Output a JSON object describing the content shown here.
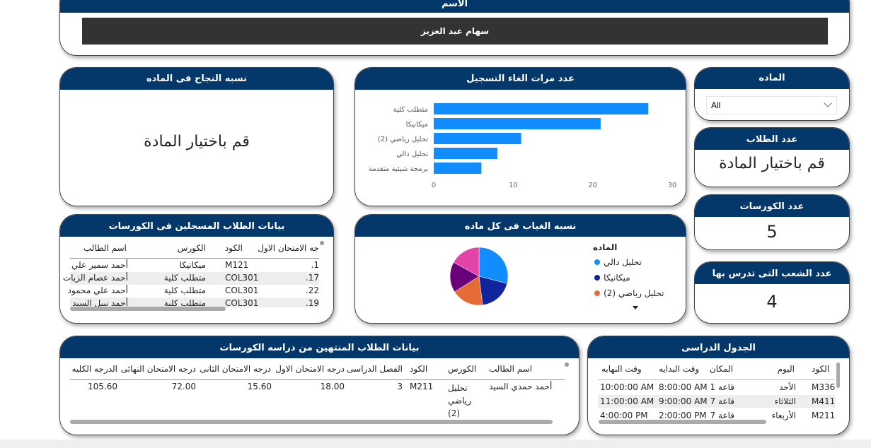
{
  "name_card": {
    "title": "الاسم",
    "value": "سهام عبد العزيز"
  },
  "pass_rate": {
    "title": "نسبه النجاح فى الماده",
    "message": "قم باختيار المادة"
  },
  "cancellations": {
    "title": "عدد مرات الغاء التسجيل"
  },
  "subject_slicer": {
    "title": "الماده",
    "selected": "All"
  },
  "students_count": {
    "title": "عدد الطلاب",
    "message": "قم باختيار المادة"
  },
  "courses_count": {
    "title": "عدد الكورسات",
    "value": "5"
  },
  "sections_count": {
    "title": "عدد الشعب التى تدرس بها",
    "value": "4"
  },
  "registered": {
    "title": "بيانات الطلاب المسجلين فى الكورسات",
    "columns": [
      "اسم الطالب",
      "الكورس",
      "الكود",
      "جه الامتحان الاول"
    ],
    "rows": [
      [
        "أحمد سمير علي",
        "ميكانيكا",
        "M121",
        "1."
      ],
      [
        "أحمد عصام الزيات",
        "متطلب كلية",
        "COL301",
        "17."
      ],
      [
        "أحمد علي محمود",
        "متطلب كلية",
        "COL301",
        "22."
      ],
      [
        "أحمد نبيل السيد",
        "متطلب كلية",
        "COL301",
        "19."
      ]
    ]
  },
  "absence": {
    "title": "نسبه الغياب فى كل ماده",
    "legend_title": "الماده",
    "legend": [
      {
        "label": "تحليل دالي",
        "color": "#118dff"
      },
      {
        "label": "ميكانيكا",
        "color": "#12239e"
      },
      {
        "label": "تحليل رياضي (2)",
        "color": "#e66c37"
      }
    ]
  },
  "finished": {
    "title": "بيانات الطلاب المنتهين من دراسه الكورسات",
    "columns": [
      "اسم الطالب",
      "الكورس",
      "الكود",
      "الفصل الدراسى",
      "درجه الامتحان الاول",
      "درجه الامتحان الثانى",
      "درجه الامتحان النهائى",
      "الدرجه الكليه"
    ],
    "rows": [
      [
        "أحمد حمدي السيد",
        "تحليل رياضي (2)",
        "M211",
        "3",
        "18.00",
        "15.60",
        "72.00",
        "105.60"
      ]
    ]
  },
  "schedule": {
    "title": "الجدول الدراسى",
    "columns": [
      "الكود",
      "اليوم",
      "المكان",
      "وقت البدايه",
      "وقت النهايه"
    ],
    "rows": [
      [
        "M336",
        "الأحد",
        "قاعة 1",
        "8:00:00 AM",
        "10:00:00 AM"
      ],
      [
        "M411",
        "الثلاثاء",
        "قاعة 7",
        "9:00:00 AM",
        "11:00:00 AM"
      ],
      [
        "M211",
        "الأربعاء",
        "قاعة 7",
        "2:00:00 PM",
        "4:00:00 PM"
      ]
    ]
  },
  "chart_data": [
    {
      "type": "bar",
      "orientation": "horizontal",
      "title": "عدد مرات الغاء التسجيل",
      "categories": [
        "متطلب كلية",
        "ميكانيكا",
        "تحليل رياضي (2)",
        "تحليل دالي",
        "برمجة شيئية متقدمة"
      ],
      "values": [
        27,
        21,
        11,
        8,
        6
      ],
      "xlim": [
        0,
        30
      ],
      "xticks": [
        "0",
        "10",
        "20",
        "30"
      ],
      "color": "#118dff",
      "grid": false
    },
    {
      "type": "pie",
      "title": "نسبه الغياب فى كل ماده",
      "legend_title": "الماده",
      "slices": [
        {
          "name": "تحليل دالي",
          "value": 29,
          "color": "#118dff"
        },
        {
          "name": "ميكانيكا",
          "value": 19,
          "color": "#12239e"
        },
        {
          "name": "تحليل رياضي (2)",
          "value": 18,
          "color": "#e66c37"
        },
        {
          "value": 17,
          "color": "#6b007b"
        },
        {
          "value": 17,
          "color": "#e044a7"
        }
      ],
      "legend_position": "right"
    }
  ]
}
